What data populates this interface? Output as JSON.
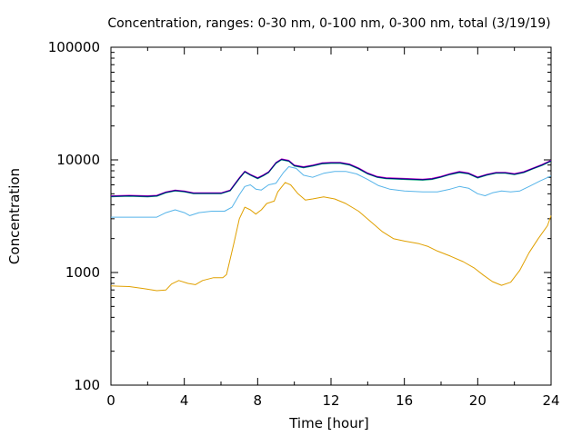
{
  "chart_data": {
    "type": "line",
    "title": "Concentration, ranges: 0-30 nm, 0-100 nm, 0-300 nm, total (3/19/19)",
    "xlabel": "Time [hour]",
    "ylabel": "Concentration",
    "xlim": [
      0,
      24
    ],
    "ylim": [
      100,
      100000
    ],
    "yscale": "log",
    "grid": false,
    "legend": "none",
    "x_ticks": [
      0,
      4,
      8,
      12,
      16,
      20,
      24
    ],
    "y_ticks": [
      100,
      1000,
      10000,
      100000
    ],
    "x_tick_labels": [
      "0",
      "4",
      "8",
      "12",
      "16",
      "20",
      "24"
    ],
    "y_tick_labels": [
      "100",
      "1000",
      "10000",
      "100000"
    ],
    "series": [
      {
        "color": "#e0a000",
        "x": [
          0,
          1,
          1.8,
          2.5,
          3,
          3.3,
          3.7,
          4.2,
          4.6,
          5,
          5.6,
          6.1,
          6.3,
          6.7,
          7,
          7.3,
          7.6,
          7.9,
          8.2,
          8.5,
          8.9,
          9.1,
          9.5,
          9.8,
          10.2,
          10.6,
          11,
          11.6,
          12.2,
          12.8,
          13.5,
          14.2,
          14.8,
          15.4,
          16,
          16.8,
          17.3,
          17.8,
          18.5,
          19.2,
          19.8,
          20.3,
          20.8,
          21.3,
          21.8,
          22.3,
          22.8,
          23.3,
          23.8,
          24
        ],
        "y": [
          760,
          750,
          720,
          690,
          700,
          790,
          850,
          800,
          780,
          850,
          900,
          900,
          960,
          1800,
          3000,
          3800,
          3600,
          3300,
          3600,
          4100,
          4300,
          5200,
          6300,
          6000,
          5000,
          4400,
          4500,
          4700,
          4500,
          4100,
          3500,
          2800,
          2300,
          2000,
          1900,
          1800,
          1700,
          1550,
          1400,
          1250,
          1100,
          950,
          830,
          770,
          820,
          1050,
          1500,
          2000,
          2600,
          3200
        ]
      },
      {
        "color": "#56b4e9",
        "x": [
          0,
          1,
          2,
          2.5,
          3,
          3.5,
          4,
          4.3,
          4.8,
          5.5,
          6.2,
          6.6,
          7,
          7.3,
          7.6,
          7.9,
          8.2,
          8.6,
          9,
          9.4,
          9.7,
          10.1,
          10.5,
          11,
          11.6,
          12.2,
          12.8,
          13.4,
          14,
          14.6,
          15.2,
          16,
          17,
          17.8,
          18.5,
          19,
          19.5,
          20,
          20.4,
          20.8,
          21.3,
          21.8,
          22.3,
          22.8,
          23.4,
          24
        ],
        "y": [
          3100,
          3100,
          3100,
          3100,
          3400,
          3600,
          3400,
          3200,
          3400,
          3500,
          3500,
          3800,
          4900,
          5800,
          6000,
          5500,
          5400,
          6000,
          6200,
          7700,
          8700,
          8400,
          7300,
          7000,
          7600,
          7900,
          7900,
          7500,
          6700,
          5900,
          5500,
          5300,
          5200,
          5200,
          5500,
          5800,
          5600,
          5000,
          4800,
          5100,
          5300,
          5200,
          5300,
          5800,
          6500,
          7200
        ]
      },
      {
        "color": "#009e73",
        "x": [
          0,
          1,
          2,
          2.5,
          3,
          3.5,
          4,
          4.5,
          5,
          5.5,
          6,
          6.5,
          7,
          7.3,
          7.6,
          8,
          8.3,
          8.6,
          9,
          9.3,
          9.7,
          10,
          10.5,
          11,
          11.5,
          12,
          12.5,
          13,
          13.5,
          14,
          14.5,
          15,
          16,
          17,
          17.5,
          18,
          18.5,
          19,
          19.5,
          20,
          20.5,
          21,
          21.5,
          22,
          22.5,
          23,
          23.5,
          24
        ],
        "y": [
          4700,
          4750,
          4700,
          4750,
          5100,
          5300,
          5200,
          5000,
          5000,
          5000,
          5000,
          5300,
          6800,
          7800,
          7300,
          6800,
          7200,
          7700,
          9300,
          10000,
          9700,
          8800,
          8500,
          8800,
          9200,
          9300,
          9300,
          9000,
          8300,
          7500,
          7000,
          6800,
          6700,
          6600,
          6700,
          7000,
          7400,
          7700,
          7500,
          6900,
          7300,
          7600,
          7600,
          7400,
          7700,
          8300,
          8900,
          9700
        ]
      },
      {
        "color": "#cc00cc",
        "x": [
          0,
          1,
          2,
          2.5,
          3,
          3.5,
          4,
          4.5,
          5,
          5.5,
          6,
          6.5,
          7,
          7.3,
          7.6,
          8,
          8.3,
          8.6,
          9,
          9.3,
          9.7,
          10,
          10.5,
          11,
          11.5,
          12,
          12.5,
          13,
          13.5,
          14,
          14.5,
          15,
          16,
          17,
          17.5,
          18,
          18.5,
          19,
          19.5,
          20,
          20.5,
          21,
          21.5,
          22,
          22.5,
          23,
          23.5,
          24
        ],
        "y": [
          4800,
          4850,
          4800,
          4850,
          5200,
          5400,
          5300,
          5100,
          5100,
          5100,
          5100,
          5400,
          6950,
          7950,
          7450,
          6950,
          7350,
          7850,
          9500,
          10200,
          9900,
          9000,
          8700,
          9000,
          9400,
          9500,
          9500,
          9200,
          8500,
          7650,
          7150,
          6950,
          6850,
          6750,
          6850,
          7150,
          7550,
          7900,
          7650,
          7050,
          7450,
          7750,
          7750,
          7550,
          7850,
          8450,
          9100,
          9900
        ]
      },
      {
        "color": "#000080",
        "x": [
          0,
          1,
          2,
          2.5,
          3,
          3.5,
          4,
          4.5,
          5,
          5.5,
          6,
          6.5,
          7,
          7.3,
          7.6,
          8,
          8.3,
          8.6,
          9,
          9.3,
          9.7,
          10,
          10.5,
          11,
          11.5,
          12,
          12.5,
          13,
          13.5,
          14,
          14.5,
          15,
          16,
          17,
          17.5,
          18,
          18.5,
          19,
          19.5,
          20,
          20.5,
          21,
          21.5,
          22,
          22.5,
          23,
          23.5,
          24
        ],
        "y": [
          4750,
          4800,
          4750,
          4800,
          5150,
          5350,
          5250,
          5050,
          5050,
          5050,
          5050,
          5350,
          6870,
          7870,
          7370,
          6870,
          7270,
          7770,
          9400,
          10100,
          9800,
          8900,
          8600,
          8900,
          9300,
          9400,
          9400,
          9100,
          8400,
          7570,
          7070,
          6870,
          6770,
          6670,
          6770,
          7070,
          7470,
          7800,
          7570,
          6970,
          7370,
          7670,
          7670,
          7470,
          7770,
          8370,
          9000,
          9800
        ]
      }
    ]
  }
}
